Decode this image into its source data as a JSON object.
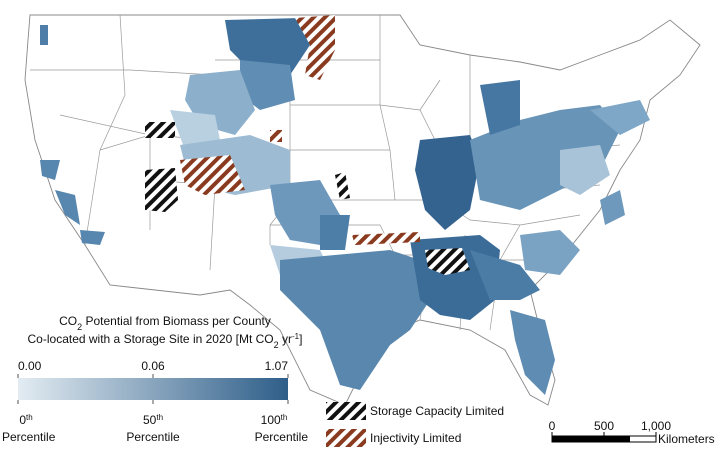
{
  "legend": {
    "title_line1": [
      "CO",
      "2",
      " Potential from Biomass per County"
    ],
    "title_line2": [
      "Co-located with a Storage Site in 2020 [Mt CO",
      "2",
      " yr",
      "-1",
      "]"
    ],
    "value_ticks": [
      {
        "value": 0,
        "label": "0.00"
      },
      0.06,
      1.07
    ],
    "percentile_ticks": [
      0,
      50,
      100
    ],
    "percentile_suffix": "th",
    "percentile_label": "Percentile",
    "colors": [
      "#e3ecf2",
      "#2e5e89"
    ]
  },
  "patterns": [
    {
      "label": "Storage Capacity Limited",
      "color": "#111111"
    },
    {
      "label": "Injectivity Limited",
      "color": "#8a3b1f"
    }
  ],
  "scale_bar": {
    "ticks": [
      0,
      500,
      {
        "value": 1000,
        "label": "1,000"
      }
    ],
    "unit": "Kilometers"
  }
}
